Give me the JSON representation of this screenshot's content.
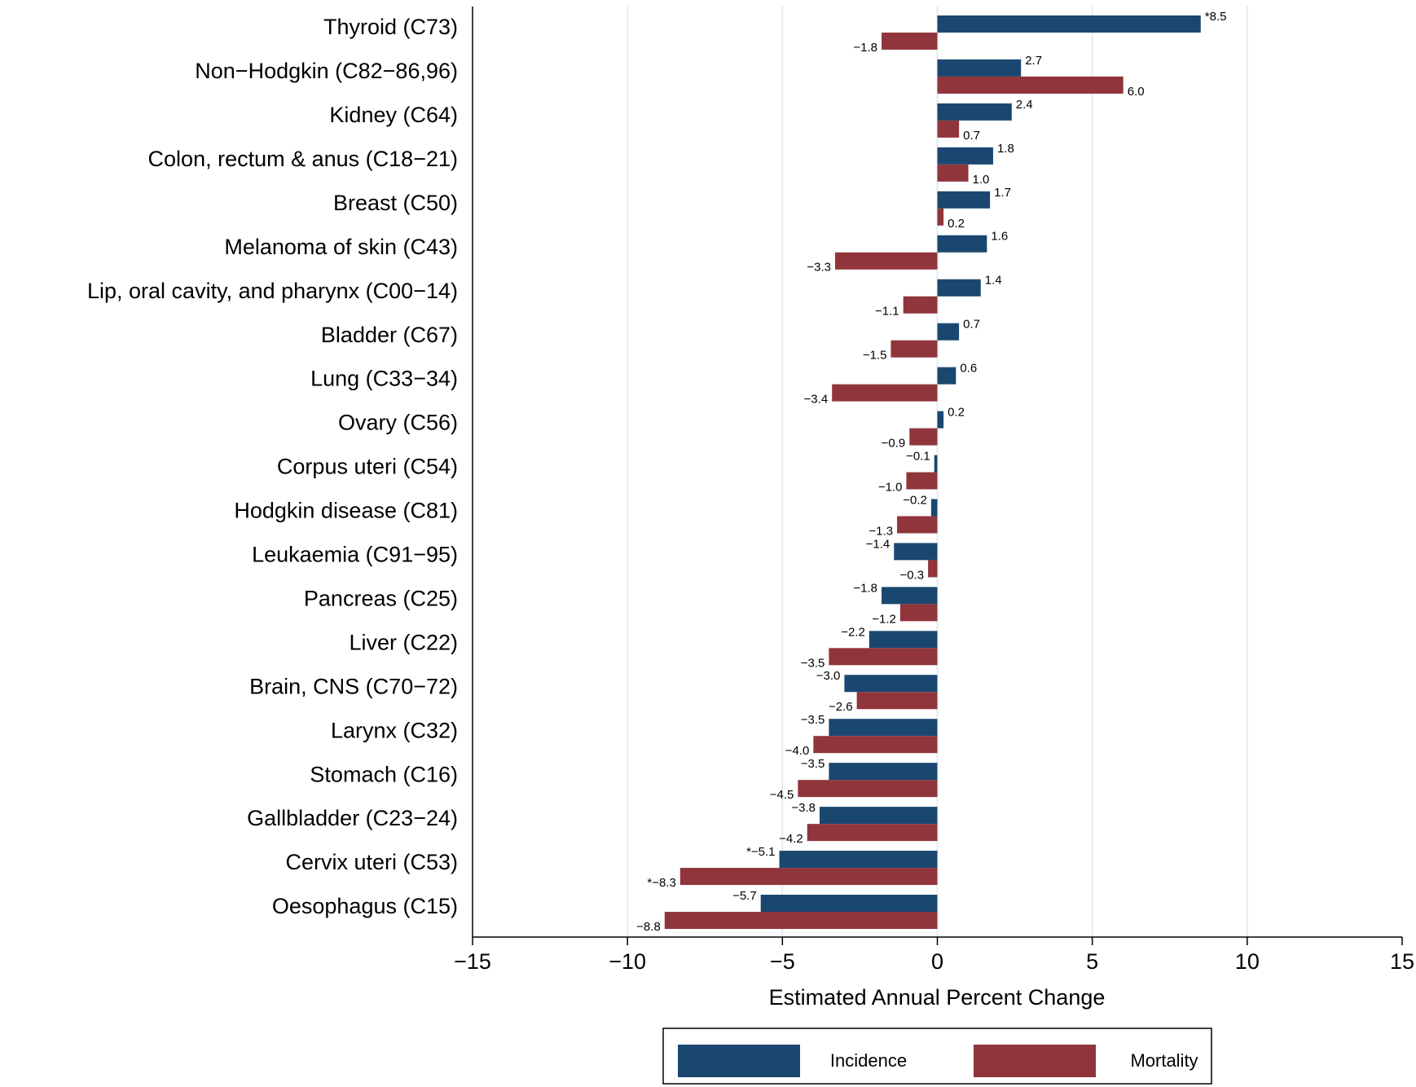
{
  "chart_data": {
    "type": "bar",
    "orientation": "horizontal",
    "xlabel": "Estimated Annual Percent Change",
    "categories": [
      "Thyroid (C73)",
      "Non−Hodgkin (C82−86,96)",
      "Kidney (C64)",
      "Colon, rectum & anus (C18−21)",
      "Breast (C50)",
      "Melanoma of skin (C43)",
      "Lip, oral cavity, and pharynx (C00−14)",
      "Bladder (C67)",
      "Lung (C33−34)",
      "Ovary (C56)",
      "Corpus uteri (C54)",
      "Hodgkin disease (C81)",
      "Leukaemia (C91−95)",
      "Pancreas (C25)",
      "Liver (C22)",
      "Brain, CNS (C70−72)",
      "Larynx (C32)",
      "Stomach (C16)",
      "Gallbladder (C23−24)",
      "Cervix uteri (C53)",
      "Oesophagus (C15)"
    ],
    "series": [
      {
        "name": "Incidence",
        "color": "#1a476f",
        "values": [
          8.5,
          2.7,
          2.4,
          1.8,
          1.7,
          1.6,
          1.4,
          0.7,
          0.6,
          0.2,
          -0.1,
          -0.2,
          -1.4,
          -1.8,
          -2.2,
          -3.0,
          -3.5,
          -3.5,
          -3.8,
          -5.1,
          -5.7
        ],
        "value_labels": [
          "*8.5",
          "2.7",
          "2.4",
          "1.8",
          "1.7",
          "1.6",
          "1.4",
          "0.7",
          "0.6",
          "0.2",
          "−0.1",
          "−0.2",
          "−1.4",
          "−1.8",
          "−2.2",
          "−3.0",
          "−3.5",
          "−3.5",
          "−3.8",
          "*−5.1",
          "−5.7"
        ]
      },
      {
        "name": "Mortality",
        "color": "#90353b",
        "values": [
          -1.8,
          6.0,
          0.7,
          1.0,
          0.2,
          -3.3,
          -1.1,
          -1.5,
          -3.4,
          -0.9,
          -1.0,
          -1.3,
          -0.3,
          -1.2,
          -3.5,
          -2.6,
          -4.0,
          -4.5,
          -4.2,
          -8.3,
          -8.8
        ],
        "value_labels": [
          "−1.8",
          "6.0",
          "0.7",
          "1.0",
          "0.2",
          "−3.3",
          "−1.1",
          "−1.5",
          "−3.4",
          "−0.9",
          "−1.0",
          "−1.3",
          "−0.3",
          "−1.2",
          "−3.5",
          "−2.6",
          "−4.0",
          "−4.5",
          "−4.2",
          "*−8.3",
          "−8.8"
        ]
      }
    ],
    "xlim": [
      -15,
      15
    ],
    "xticks": [
      {
        "value": -15,
        "label": "−15"
      },
      {
        "value": -10,
        "label": "−10"
      },
      {
        "value": -5,
        "label": "−5"
      },
      0,
      5,
      10,
      15
    ],
    "grid": true,
    "legend": "bottom"
  }
}
